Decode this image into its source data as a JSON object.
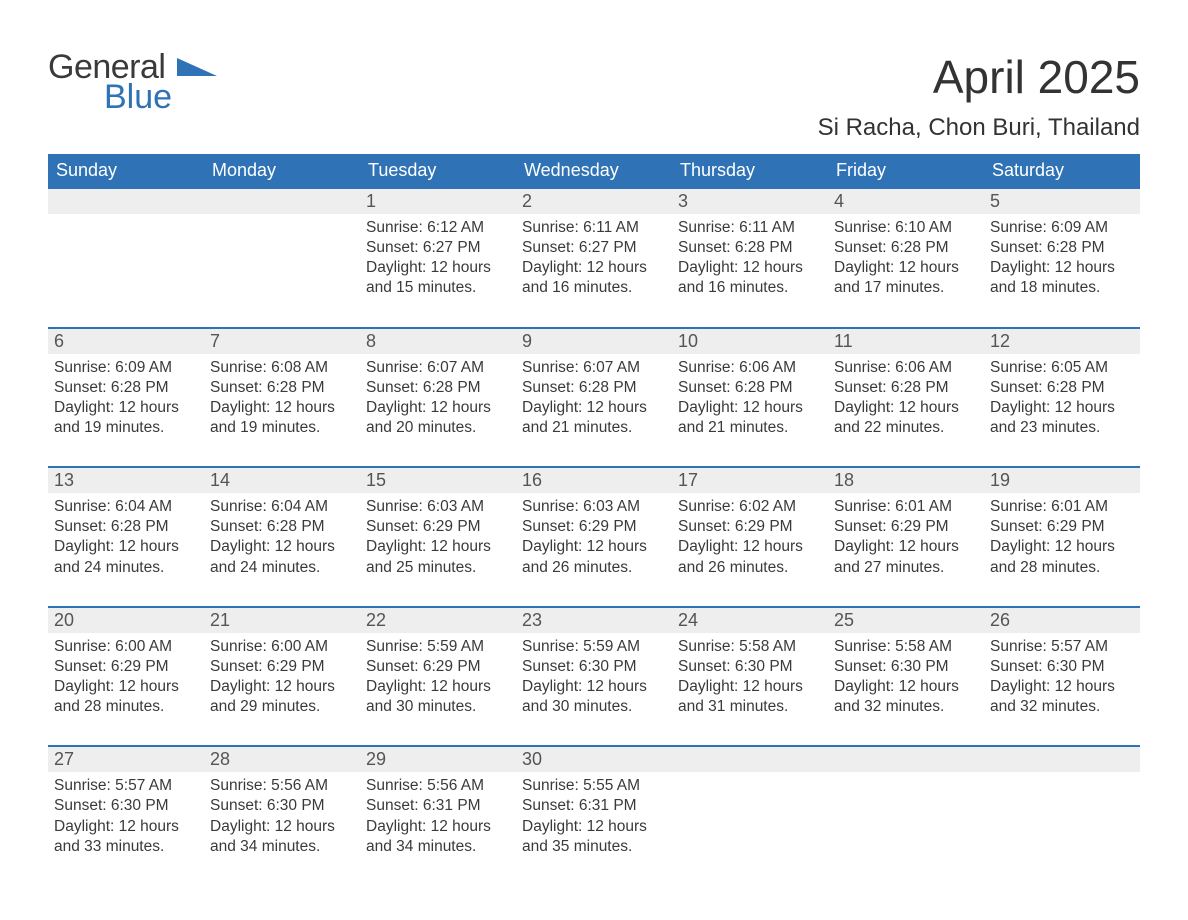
{
  "brand": {
    "word1": "General",
    "word2": "Blue",
    "triangle_color": "#2f73b6"
  },
  "title": "April 2025",
  "location": "Si Racha, Chon Buri, Thailand",
  "colors": {
    "header_bg": "#2f73b6",
    "header_text": "#ffffff",
    "daynum_bg": "#eeeeee",
    "rule": "#2f73b6",
    "text": "#3a3a3a"
  },
  "dow": [
    "Sunday",
    "Monday",
    "Tuesday",
    "Wednesday",
    "Thursday",
    "Friday",
    "Saturday"
  ],
  "weeks": [
    [
      null,
      null,
      {
        "n": "1",
        "sr": "Sunrise: 6:12 AM",
        "ss": "Sunset: 6:27 PM",
        "d1": "Daylight: 12 hours",
        "d2": "and 15 minutes."
      },
      {
        "n": "2",
        "sr": "Sunrise: 6:11 AM",
        "ss": "Sunset: 6:27 PM",
        "d1": "Daylight: 12 hours",
        "d2": "and 16 minutes."
      },
      {
        "n": "3",
        "sr": "Sunrise: 6:11 AM",
        "ss": "Sunset: 6:28 PM",
        "d1": "Daylight: 12 hours",
        "d2": "and 16 minutes."
      },
      {
        "n": "4",
        "sr": "Sunrise: 6:10 AM",
        "ss": "Sunset: 6:28 PM",
        "d1": "Daylight: 12 hours",
        "d2": "and 17 minutes."
      },
      {
        "n": "5",
        "sr": "Sunrise: 6:09 AM",
        "ss": "Sunset: 6:28 PM",
        "d1": "Daylight: 12 hours",
        "d2": "and 18 minutes."
      }
    ],
    [
      {
        "n": "6",
        "sr": "Sunrise: 6:09 AM",
        "ss": "Sunset: 6:28 PM",
        "d1": "Daylight: 12 hours",
        "d2": "and 19 minutes."
      },
      {
        "n": "7",
        "sr": "Sunrise: 6:08 AM",
        "ss": "Sunset: 6:28 PM",
        "d1": "Daylight: 12 hours",
        "d2": "and 19 minutes."
      },
      {
        "n": "8",
        "sr": "Sunrise: 6:07 AM",
        "ss": "Sunset: 6:28 PM",
        "d1": "Daylight: 12 hours",
        "d2": "and 20 minutes."
      },
      {
        "n": "9",
        "sr": "Sunrise: 6:07 AM",
        "ss": "Sunset: 6:28 PM",
        "d1": "Daylight: 12 hours",
        "d2": "and 21 minutes."
      },
      {
        "n": "10",
        "sr": "Sunrise: 6:06 AM",
        "ss": "Sunset: 6:28 PM",
        "d1": "Daylight: 12 hours",
        "d2": "and 21 minutes."
      },
      {
        "n": "11",
        "sr": "Sunrise: 6:06 AM",
        "ss": "Sunset: 6:28 PM",
        "d1": "Daylight: 12 hours",
        "d2": "and 22 minutes."
      },
      {
        "n": "12",
        "sr": "Sunrise: 6:05 AM",
        "ss": "Sunset: 6:28 PM",
        "d1": "Daylight: 12 hours",
        "d2": "and 23 minutes."
      }
    ],
    [
      {
        "n": "13",
        "sr": "Sunrise: 6:04 AM",
        "ss": "Sunset: 6:28 PM",
        "d1": "Daylight: 12 hours",
        "d2": "and 24 minutes."
      },
      {
        "n": "14",
        "sr": "Sunrise: 6:04 AM",
        "ss": "Sunset: 6:28 PM",
        "d1": "Daylight: 12 hours",
        "d2": "and 24 minutes."
      },
      {
        "n": "15",
        "sr": "Sunrise: 6:03 AM",
        "ss": "Sunset: 6:29 PM",
        "d1": "Daylight: 12 hours",
        "d2": "and 25 minutes."
      },
      {
        "n": "16",
        "sr": "Sunrise: 6:03 AM",
        "ss": "Sunset: 6:29 PM",
        "d1": "Daylight: 12 hours",
        "d2": "and 26 minutes."
      },
      {
        "n": "17",
        "sr": "Sunrise: 6:02 AM",
        "ss": "Sunset: 6:29 PM",
        "d1": "Daylight: 12 hours",
        "d2": "and 26 minutes."
      },
      {
        "n": "18",
        "sr": "Sunrise: 6:01 AM",
        "ss": "Sunset: 6:29 PM",
        "d1": "Daylight: 12 hours",
        "d2": "and 27 minutes."
      },
      {
        "n": "19",
        "sr": "Sunrise: 6:01 AM",
        "ss": "Sunset: 6:29 PM",
        "d1": "Daylight: 12 hours",
        "d2": "and 28 minutes."
      }
    ],
    [
      {
        "n": "20",
        "sr": "Sunrise: 6:00 AM",
        "ss": "Sunset: 6:29 PM",
        "d1": "Daylight: 12 hours",
        "d2": "and 28 minutes."
      },
      {
        "n": "21",
        "sr": "Sunrise: 6:00 AM",
        "ss": "Sunset: 6:29 PM",
        "d1": "Daylight: 12 hours",
        "d2": "and 29 minutes."
      },
      {
        "n": "22",
        "sr": "Sunrise: 5:59 AM",
        "ss": "Sunset: 6:29 PM",
        "d1": "Daylight: 12 hours",
        "d2": "and 30 minutes."
      },
      {
        "n": "23",
        "sr": "Sunrise: 5:59 AM",
        "ss": "Sunset: 6:30 PM",
        "d1": "Daylight: 12 hours",
        "d2": "and 30 minutes."
      },
      {
        "n": "24",
        "sr": "Sunrise: 5:58 AM",
        "ss": "Sunset: 6:30 PM",
        "d1": "Daylight: 12 hours",
        "d2": "and 31 minutes."
      },
      {
        "n": "25",
        "sr": "Sunrise: 5:58 AM",
        "ss": "Sunset: 6:30 PM",
        "d1": "Daylight: 12 hours",
        "d2": "and 32 minutes."
      },
      {
        "n": "26",
        "sr": "Sunrise: 5:57 AM",
        "ss": "Sunset: 6:30 PM",
        "d1": "Daylight: 12 hours",
        "d2": "and 32 minutes."
      }
    ],
    [
      {
        "n": "27",
        "sr": "Sunrise: 5:57 AM",
        "ss": "Sunset: 6:30 PM",
        "d1": "Daylight: 12 hours",
        "d2": "and 33 minutes."
      },
      {
        "n": "28",
        "sr": "Sunrise: 5:56 AM",
        "ss": "Sunset: 6:30 PM",
        "d1": "Daylight: 12 hours",
        "d2": "and 34 minutes."
      },
      {
        "n": "29",
        "sr": "Sunrise: 5:56 AM",
        "ss": "Sunset: 6:31 PM",
        "d1": "Daylight: 12 hours",
        "d2": "and 34 minutes."
      },
      {
        "n": "30",
        "sr": "Sunrise: 5:55 AM",
        "ss": "Sunset: 6:31 PM",
        "d1": "Daylight: 12 hours",
        "d2": "and 35 minutes."
      },
      null,
      null,
      null
    ]
  ]
}
